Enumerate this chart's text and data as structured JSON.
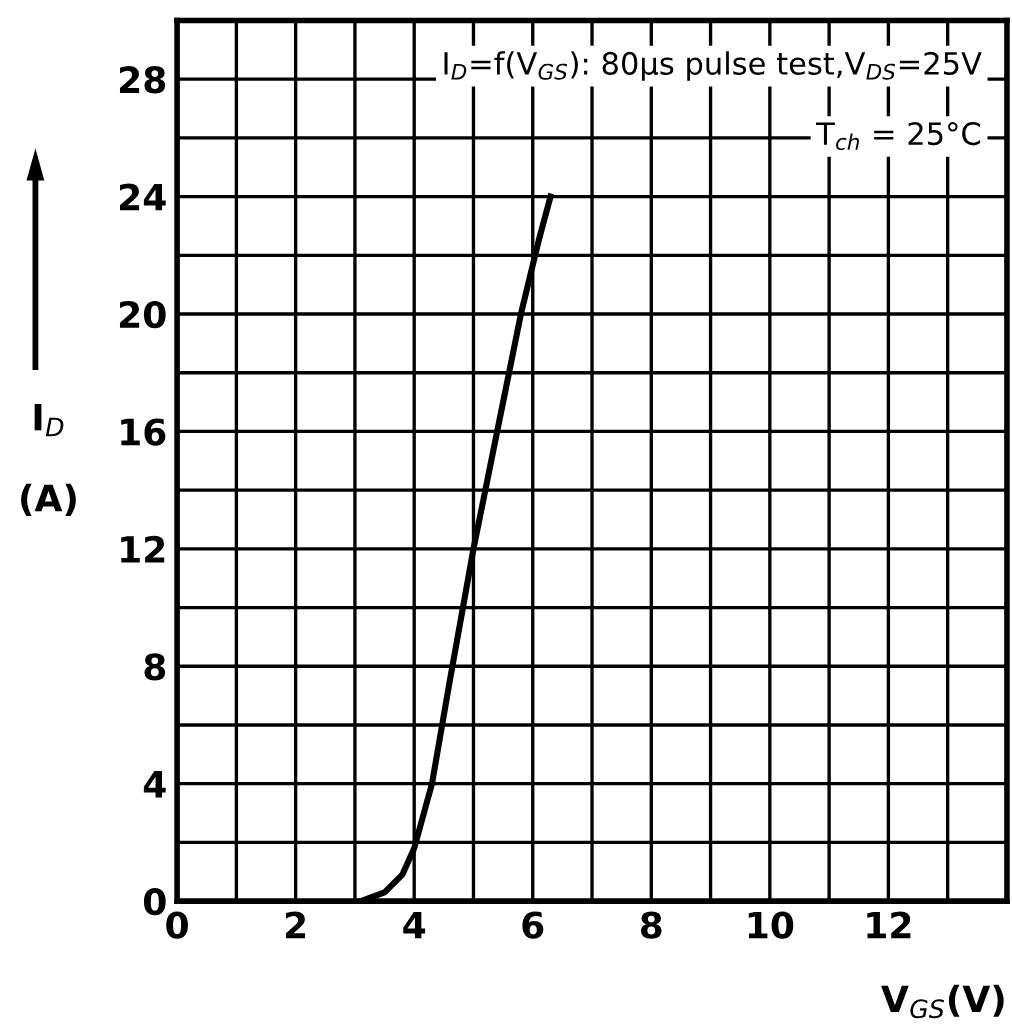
{
  "chart_data": {
    "type": "line",
    "xlabel": "V$_{GS}$(V)",
    "ylabel": "I$_{D}$\n\n(A)",
    "annotations": [
      "I$_{D}$=f(V$_{GS}$): 80μs pulse test,V$_{DS}$=25V",
      "T$_{ch}$ = 25°C"
    ],
    "series": [
      {
        "color": "#000000",
        "x": [
          3.1,
          3.5,
          3.8,
          4.0,
          4.3,
          4.6,
          5.0,
          5.4,
          5.8,
          6.1,
          6.3
        ],
        "values": [
          0,
          0.3,
          0.9,
          1.8,
          4,
          7.5,
          12,
          16,
          20,
          22.5,
          24
        ]
      }
    ],
    "xlim": [
      0,
      14
    ],
    "ylim": [
      0,
      30
    ],
    "xticks": [
      0,
      2,
      4,
      6,
      8,
      10,
      12
    ],
    "yticks": [
      0,
      4,
      8,
      12,
      16,
      20,
      24,
      28
    ],
    "grid": true,
    "marker": "none",
    "line_style": "solid"
  }
}
